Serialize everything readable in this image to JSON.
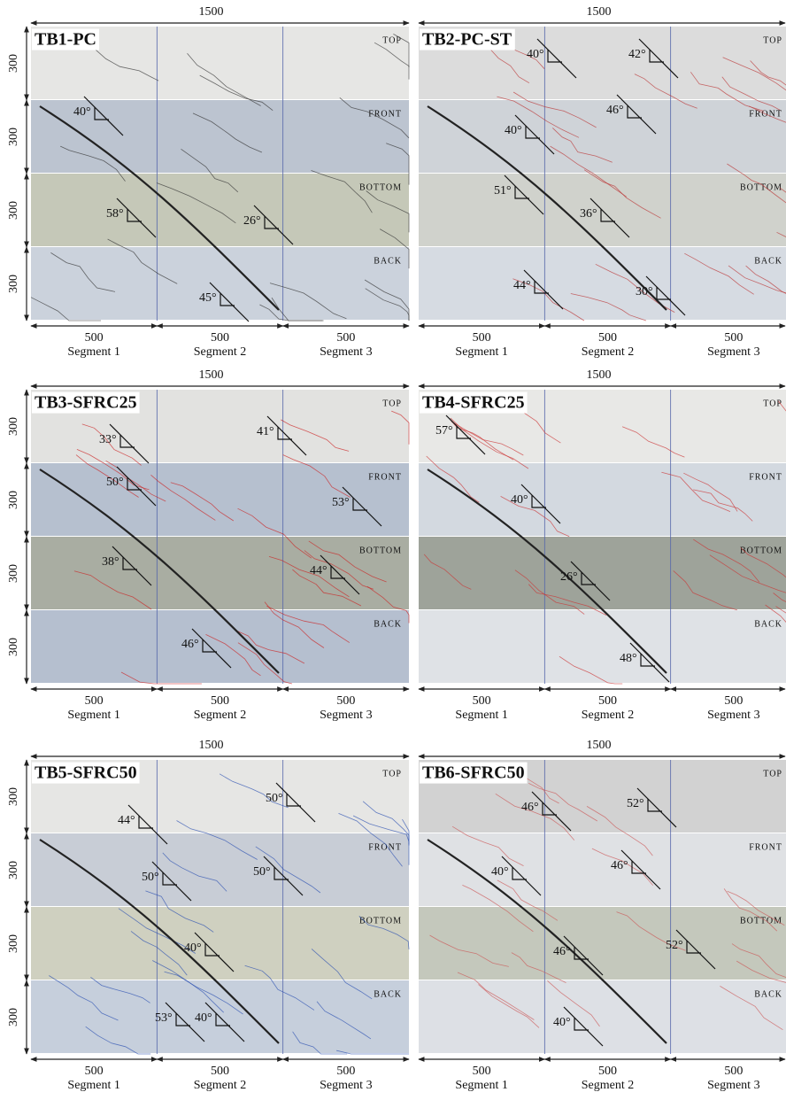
{
  "panels": [
    {
      "title": "TB1-PC",
      "length": "1500",
      "heights": [
        "300",
        "300",
        "300",
        "300"
      ],
      "faces": [
        "TOP",
        "FRONT",
        "BOTTOM",
        "BACK"
      ],
      "segments": [
        {
          "length": "500",
          "label": "Segment 1"
        },
        {
          "length": "500",
          "label": "Segment 2"
        },
        {
          "length": "500",
          "label": "Segment 3"
        }
      ],
      "angles": [
        "40°",
        "58°",
        "26°",
        "45°"
      ]
    },
    {
      "title": "TB2-PC-ST",
      "length": "1500",
      "faces": [
        "TOP",
        "FRONT",
        "BOTTOM",
        "BACK"
      ],
      "segments": [
        {
          "length": "500",
          "label": "Segment 1"
        },
        {
          "length": "500",
          "label": "Segment 2"
        },
        {
          "length": "500",
          "label": "Segment 3"
        }
      ],
      "angles": [
        "40°",
        "42°",
        "46°",
        "40°",
        "51°",
        "36°",
        "44°",
        "30°"
      ]
    },
    {
      "title": "TB3-SFRC25",
      "length": "1500",
      "heights": [
        "300",
        "300",
        "300",
        "300"
      ],
      "faces": [
        "TOP",
        "FRONT",
        "BOTTOM",
        "BACK"
      ],
      "segments": [
        {
          "length": "500",
          "label": "Segment 1"
        },
        {
          "length": "500",
          "label": "Segment 2"
        },
        {
          "length": "500",
          "label": "Segment 3"
        }
      ],
      "angles": [
        "33°",
        "41°",
        "50°",
        "53°",
        "38°",
        "44°",
        "46°"
      ]
    },
    {
      "title": "TB4-SFRC25",
      "length": "1500",
      "faces": [
        "TOP",
        "FRONT",
        "BOTTOM",
        "BACK"
      ],
      "segments": [
        {
          "length": "500",
          "label": "Segment 1"
        },
        {
          "length": "500",
          "label": "Segment 2"
        },
        {
          "length": "500",
          "label": "Segment 3"
        }
      ],
      "angles": [
        "57°",
        "40°",
        "26°",
        "48°"
      ]
    },
    {
      "title": "TB5-SFRC50",
      "length": "1500",
      "heights": [
        "300",
        "300",
        "300",
        "300"
      ],
      "faces": [
        "TOP",
        "FRONT",
        "BOTTOM",
        "BACK"
      ],
      "segments": [
        {
          "length": "500",
          "label": "Segment 1"
        },
        {
          "length": "500",
          "label": "Segment 2"
        },
        {
          "length": "500",
          "label": "Segment 3"
        }
      ],
      "angles": [
        "50°",
        "44°",
        "50°",
        "50°",
        "40°",
        "53°",
        "40°"
      ]
    },
    {
      "title": "TB6-SFRC50",
      "length": "1500",
      "faces": [
        "TOP",
        "FRONT",
        "BOTTOM",
        "BACK"
      ],
      "segments": [
        {
          "length": "500",
          "label": "Segment 1"
        },
        {
          "length": "500",
          "label": "Segment 2"
        },
        {
          "length": "500",
          "label": "Segment 3"
        }
      ],
      "angles": [
        "46°",
        "52°",
        "40°",
        "46°",
        "46°",
        "52°",
        "40°"
      ]
    }
  ]
}
